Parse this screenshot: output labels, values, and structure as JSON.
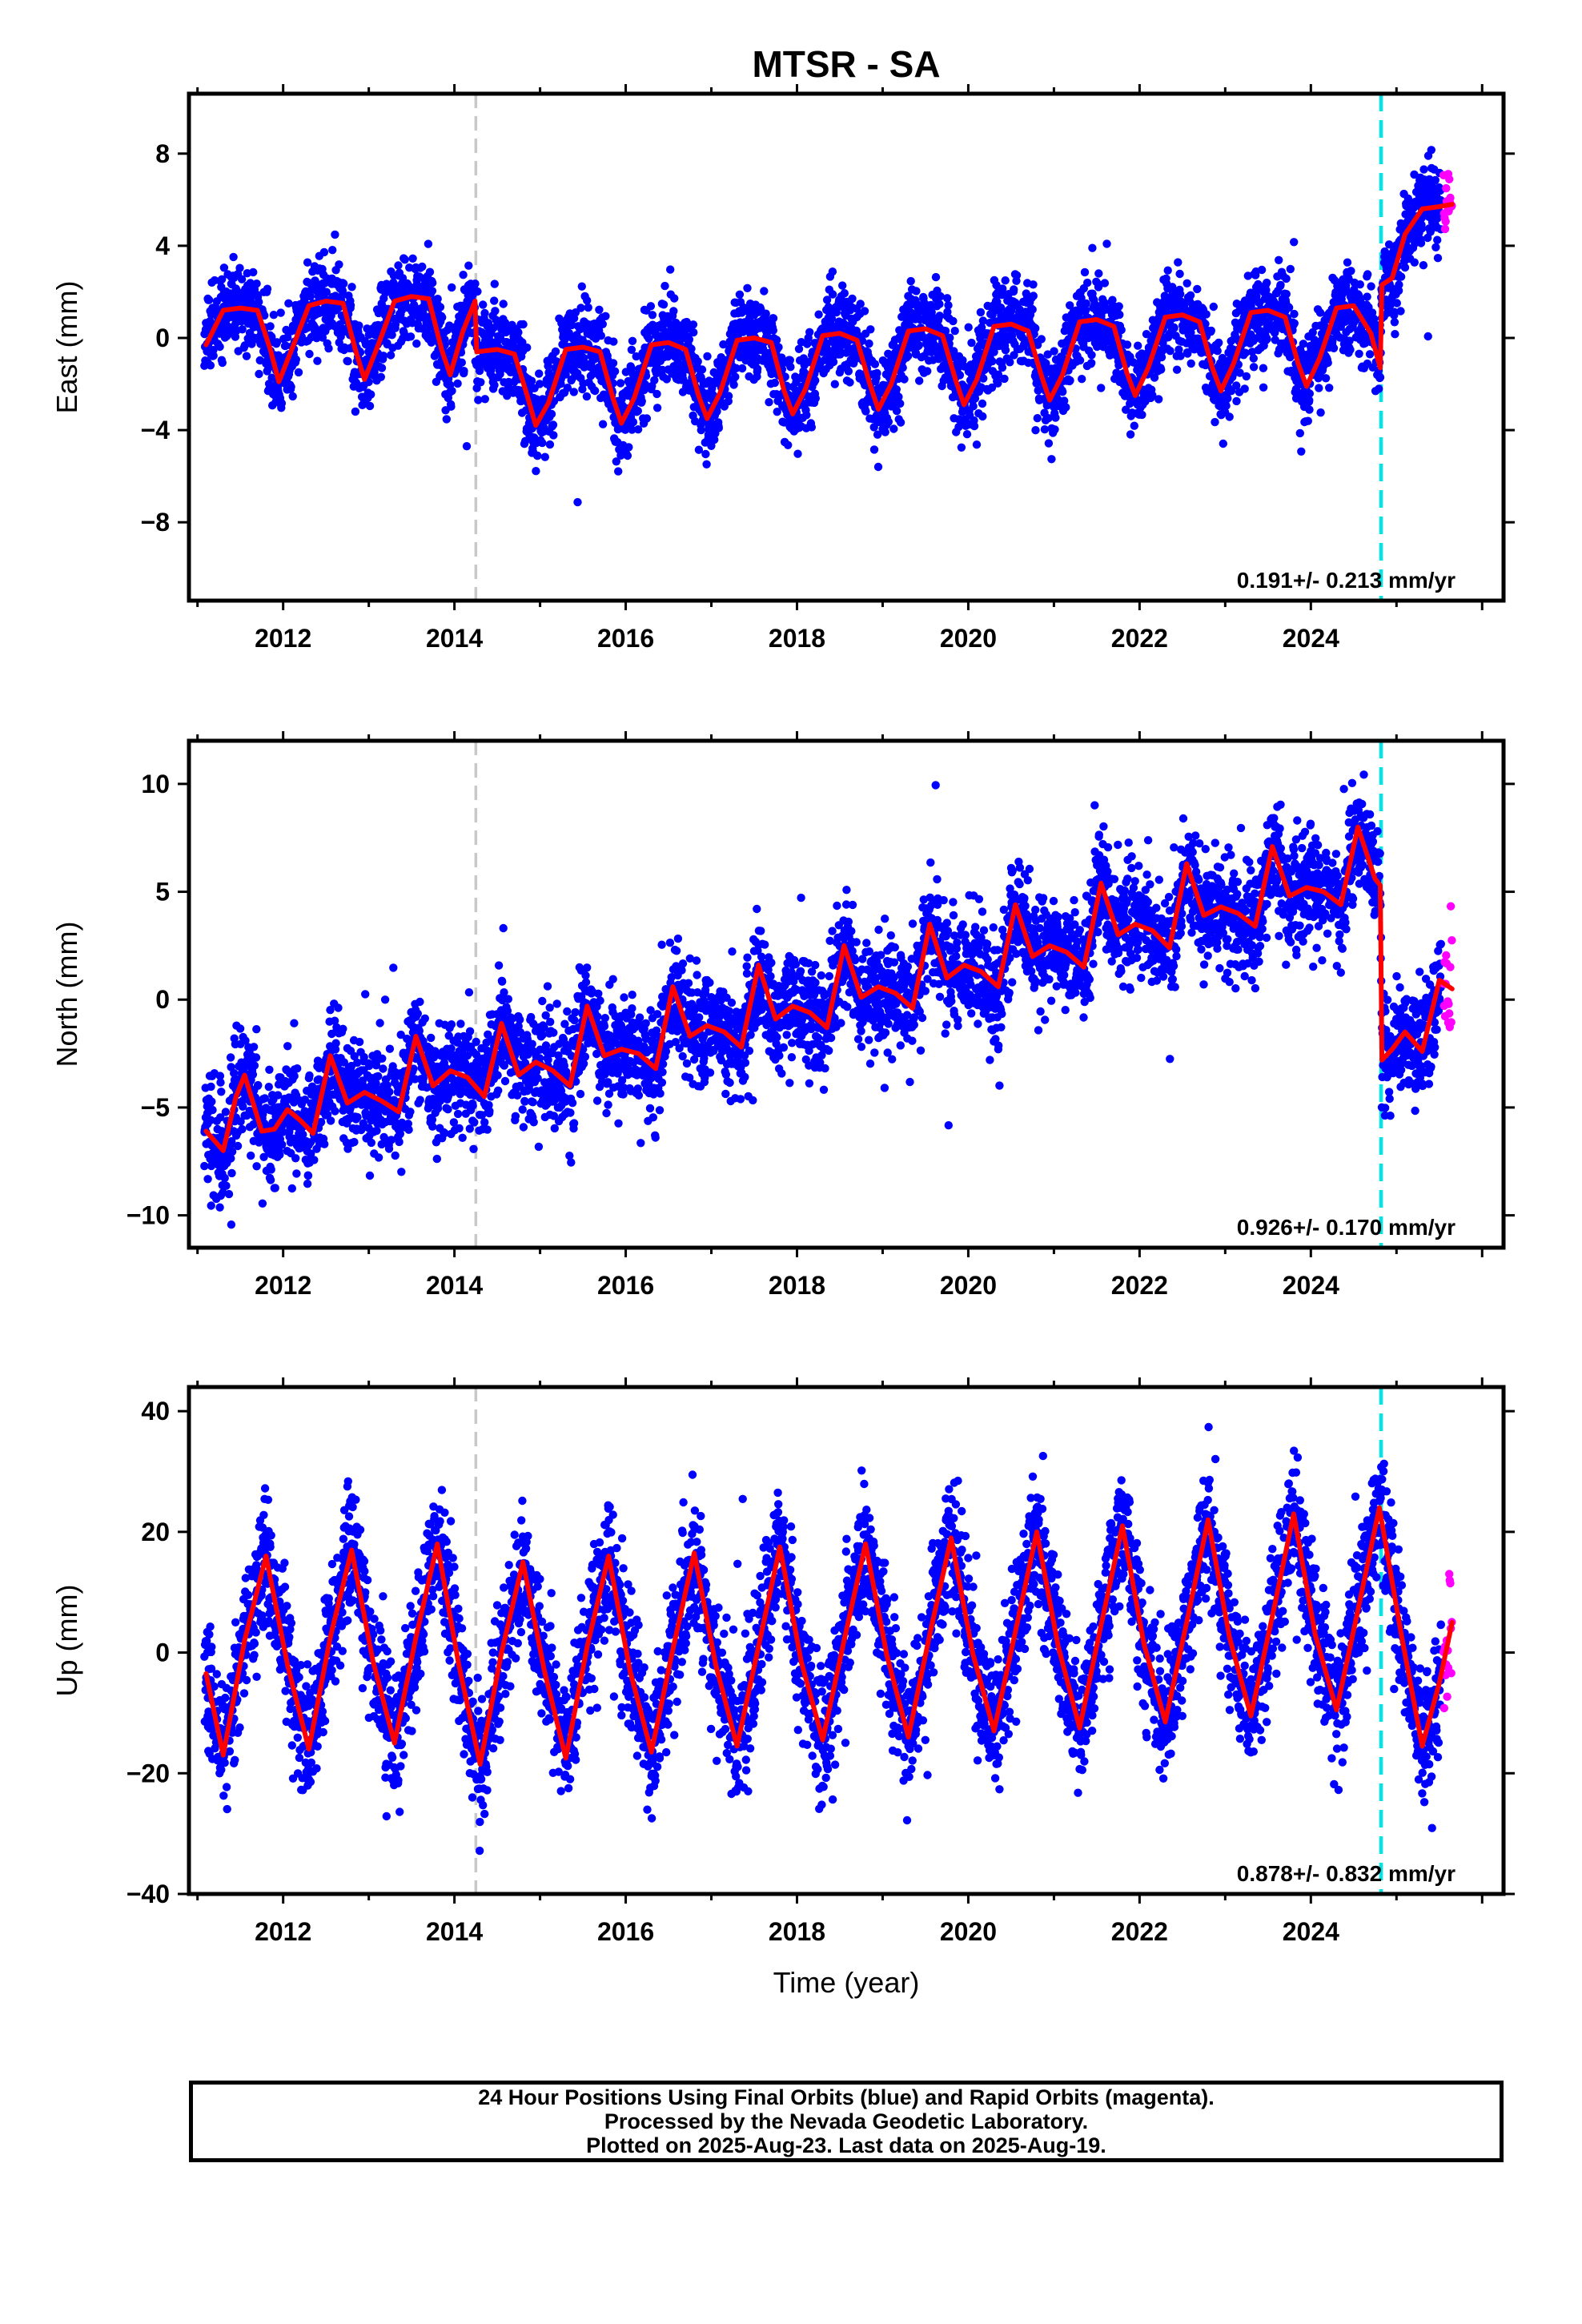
{
  "chart_data": {
    "title": "MTSR - SA",
    "type": "scatter",
    "xlabel": "Time (year)",
    "xlim": [
      2010.9,
      2026.25
    ],
    "xticks": [
      2012,
      2014,
      2016,
      2018,
      2020,
      2022,
      2024
    ],
    "series_legend": {
      "final_orbits_color": "#0000ff",
      "rapid_orbits_color": "#ff00ff",
      "model_color": "#ff0000"
    },
    "reference_lines": [
      {
        "x": 2014.25,
        "style": "dashed",
        "color": "#c8c8c8"
      },
      {
        "x": 2024.82,
        "style": "dashed",
        "color": "#00e5e5"
      }
    ],
    "panels": [
      {
        "ylabel": "East (mm)",
        "ylim": [
          -11.4,
          10.6
        ],
        "yticks": [
          -8,
          -4,
          0,
          4,
          8
        ],
        "rate_text": "0.191+/- 0.213 mm/yr",
        "model_curve": [
          [
            2011.1,
            -0.3
          ],
          [
            2011.3,
            1.2
          ],
          [
            2011.5,
            1.3
          ],
          [
            2011.7,
            1.2
          ],
          [
            2011.85,
            -0.5
          ],
          [
            2011.95,
            -1.9
          ],
          [
            2012.1,
            -0.5
          ],
          [
            2012.3,
            1.4
          ],
          [
            2012.5,
            1.6
          ],
          [
            2012.7,
            1.5
          ],
          [
            2012.85,
            -0.6
          ],
          [
            2012.95,
            -1.8
          ],
          [
            2013.1,
            -0.4
          ],
          [
            2013.3,
            1.6
          ],
          [
            2013.5,
            1.8
          ],
          [
            2013.7,
            1.7
          ],
          [
            2013.85,
            -0.5
          ],
          [
            2013.95,
            -1.6
          ],
          [
            2014.1,
            0.3
          ],
          [
            2014.24,
            1.6
          ],
          [
            2014.26,
            -0.6
          ],
          [
            2014.5,
            -0.5
          ],
          [
            2014.7,
            -0.7
          ],
          [
            2014.85,
            -2.5
          ],
          [
            2014.95,
            -3.8
          ],
          [
            2015.1,
            -2.8
          ],
          [
            2015.3,
            -0.5
          ],
          [
            2015.5,
            -0.4
          ],
          [
            2015.7,
            -0.6
          ],
          [
            2015.85,
            -2.6
          ],
          [
            2015.95,
            -3.7
          ],
          [
            2016.1,
            -2.6
          ],
          [
            2016.3,
            -0.3
          ],
          [
            2016.5,
            -0.2
          ],
          [
            2016.7,
            -0.5
          ],
          [
            2016.85,
            -2.5
          ],
          [
            2016.95,
            -3.5
          ],
          [
            2017.1,
            -2.4
          ],
          [
            2017.3,
            -0.1
          ],
          [
            2017.5,
            0.0
          ],
          [
            2017.7,
            -0.2
          ],
          [
            2017.85,
            -2.3
          ],
          [
            2017.95,
            -3.3
          ],
          [
            2018.1,
            -2.2
          ],
          [
            2018.3,
            0.1
          ],
          [
            2018.5,
            0.2
          ],
          [
            2018.7,
            -0.1
          ],
          [
            2018.85,
            -2.0
          ],
          [
            2018.95,
            -3.1
          ],
          [
            2019.1,
            -2.0
          ],
          [
            2019.3,
            0.3
          ],
          [
            2019.5,
            0.4
          ],
          [
            2019.7,
            0.1
          ],
          [
            2019.85,
            -1.8
          ],
          [
            2019.95,
            -2.9
          ],
          [
            2020.1,
            -1.8
          ],
          [
            2020.3,
            0.5
          ],
          [
            2020.5,
            0.6
          ],
          [
            2020.7,
            0.3
          ],
          [
            2020.85,
            -1.6
          ],
          [
            2020.95,
            -2.7
          ],
          [
            2021.1,
            -1.6
          ],
          [
            2021.3,
            0.7
          ],
          [
            2021.5,
            0.8
          ],
          [
            2021.7,
            0.5
          ],
          [
            2021.85,
            -1.5
          ],
          [
            2021.95,
            -2.5
          ],
          [
            2022.1,
            -1.3
          ],
          [
            2022.3,
            0.9
          ],
          [
            2022.5,
            1.0
          ],
          [
            2022.7,
            0.7
          ],
          [
            2022.85,
            -1.3
          ],
          [
            2022.95,
            -2.3
          ],
          [
            2023.1,
            -1.1
          ],
          [
            2023.3,
            1.1
          ],
          [
            2023.5,
            1.2
          ],
          [
            2023.7,
            0.9
          ],
          [
            2023.85,
            -1.1
          ],
          [
            2023.95,
            -2.1
          ],
          [
            2024.1,
            -0.9
          ],
          [
            2024.3,
            1.3
          ],
          [
            2024.5,
            1.4
          ],
          [
            2024.7,
            0.2
          ],
          [
            2024.81,
            -1.3
          ],
          [
            2024.83,
            2.3
          ],
          [
            2024.95,
            2.6
          ],
          [
            2025.1,
            4.5
          ],
          [
            2025.3,
            5.6
          ],
          [
            2025.5,
            5.7
          ],
          [
            2025.65,
            5.8
          ]
        ]
      },
      {
        "ylabel": "North (mm)",
        "ylim": [
          -11.5,
          12.0
        ],
        "yticks": [
          -10,
          -5,
          0,
          5,
          10
        ],
        "rate_text": "0.926+/- 0.170 mm/yr",
        "model_curve": [
          [
            2011.1,
            -6.1
          ],
          [
            2011.3,
            -7.0
          ],
          [
            2011.45,
            -4.5
          ],
          [
            2011.55,
            -3.5
          ],
          [
            2011.75,
            -6.1
          ],
          [
            2011.9,
            -6.0
          ],
          [
            2012.05,
            -5.1
          ],
          [
            2012.2,
            -5.6
          ],
          [
            2012.35,
            -6.2
          ],
          [
            2012.55,
            -2.6
          ],
          [
            2012.75,
            -4.8
          ],
          [
            2012.95,
            -4.3
          ],
          [
            2013.15,
            -4.7
          ],
          [
            2013.35,
            -5.2
          ],
          [
            2013.55,
            -1.7
          ],
          [
            2013.75,
            -4.0
          ],
          [
            2013.95,
            -3.3
          ],
          [
            2014.15,
            -3.6
          ],
          [
            2014.35,
            -4.5
          ],
          [
            2014.55,
            -1.1
          ],
          [
            2014.75,
            -3.5
          ],
          [
            2014.95,
            -2.9
          ],
          [
            2015.15,
            -3.3
          ],
          [
            2015.35,
            -4.0
          ],
          [
            2015.55,
            -0.3
          ],
          [
            2015.75,
            -2.6
          ],
          [
            2015.95,
            -2.3
          ],
          [
            2016.15,
            -2.5
          ],
          [
            2016.35,
            -3.2
          ],
          [
            2016.55,
            0.6
          ],
          [
            2016.75,
            -1.7
          ],
          [
            2016.95,
            -1.2
          ],
          [
            2017.15,
            -1.5
          ],
          [
            2017.35,
            -2.2
          ],
          [
            2017.55,
            1.6
          ],
          [
            2017.75,
            -0.9
          ],
          [
            2017.95,
            -0.3
          ],
          [
            2018.15,
            -0.6
          ],
          [
            2018.35,
            -1.3
          ],
          [
            2018.55,
            2.5
          ],
          [
            2018.75,
            0.1
          ],
          [
            2018.95,
            0.6
          ],
          [
            2019.15,
            0.3
          ],
          [
            2019.35,
            -0.4
          ],
          [
            2019.55,
            3.5
          ],
          [
            2019.75,
            1.0
          ],
          [
            2019.95,
            1.6
          ],
          [
            2020.15,
            1.3
          ],
          [
            2020.35,
            0.6
          ],
          [
            2020.55,
            4.4
          ],
          [
            2020.75,
            2.0
          ],
          [
            2020.95,
            2.5
          ],
          [
            2021.15,
            2.2
          ],
          [
            2021.35,
            1.5
          ],
          [
            2021.55,
            5.4
          ],
          [
            2021.75,
            3.0
          ],
          [
            2021.95,
            3.5
          ],
          [
            2022.15,
            3.2
          ],
          [
            2022.35,
            2.4
          ],
          [
            2022.55,
            6.3
          ],
          [
            2022.75,
            3.9
          ],
          [
            2022.95,
            4.3
          ],
          [
            2023.15,
            4.0
          ],
          [
            2023.35,
            3.4
          ],
          [
            2023.55,
            7.1
          ],
          [
            2023.75,
            4.8
          ],
          [
            2023.95,
            5.2
          ],
          [
            2024.15,
            5.0
          ],
          [
            2024.35,
            4.4
          ],
          [
            2024.55,
            8.0
          ],
          [
            2024.75,
            5.6
          ],
          [
            2024.81,
            5.3
          ],
          [
            2024.83,
            -2.8
          ],
          [
            2024.95,
            -2.3
          ],
          [
            2025.1,
            -1.5
          ],
          [
            2025.3,
            -2.4
          ],
          [
            2025.5,
            0.9
          ],
          [
            2025.65,
            0.5
          ]
        ]
      },
      {
        "ylabel": "Up (mm)",
        "ylim": [
          -40,
          44
        ],
        "yticks": [
          -40,
          -20,
          0,
          20,
          40
        ],
        "rate_text": "0.878+/- 0.832 mm/yr",
        "model_curve": [
          [
            2011.1,
            -3.5
          ],
          [
            2011.3,
            -17.0
          ],
          [
            2011.55,
            2.0
          ],
          [
            2011.8,
            16.0
          ],
          [
            2012.05,
            -2.0
          ],
          [
            2012.3,
            -16.0
          ],
          [
            2012.55,
            2.5
          ],
          [
            2012.8,
            17.0
          ],
          [
            2013.05,
            -1.5
          ],
          [
            2013.3,
            -15.0
          ],
          [
            2013.55,
            2.5
          ],
          [
            2013.8,
            18.0
          ],
          [
            2014.05,
            -2.0
          ],
          [
            2014.3,
            -18.5
          ],
          [
            2014.55,
            0.0
          ],
          [
            2014.8,
            15.0
          ],
          [
            2015.05,
            -3.0
          ],
          [
            2015.3,
            -17.5
          ],
          [
            2015.55,
            1.0
          ],
          [
            2015.8,
            16.0
          ],
          [
            2016.05,
            -3.0
          ],
          [
            2016.3,
            -16.5
          ],
          [
            2016.55,
            0.5
          ],
          [
            2016.8,
            16.5
          ],
          [
            2017.05,
            -2.0
          ],
          [
            2017.3,
            -15.5
          ],
          [
            2017.55,
            1.0
          ],
          [
            2017.8,
            17.5
          ],
          [
            2018.05,
            -1.5
          ],
          [
            2018.3,
            -14.5
          ],
          [
            2018.55,
            2.0
          ],
          [
            2018.8,
            18.0
          ],
          [
            2019.05,
            -0.5
          ],
          [
            2019.3,
            -14.0
          ],
          [
            2019.55,
            3.0
          ],
          [
            2019.8,
            19.0
          ],
          [
            2020.05,
            0.0
          ],
          [
            2020.3,
            -13.0
          ],
          [
            2020.55,
            3.5
          ],
          [
            2020.8,
            20.0
          ],
          [
            2021.05,
            1.0
          ],
          [
            2021.3,
            -12.5
          ],
          [
            2021.55,
            4.5
          ],
          [
            2021.8,
            21.0
          ],
          [
            2022.05,
            1.5
          ],
          [
            2022.3,
            -11.5
          ],
          [
            2022.55,
            5.0
          ],
          [
            2022.8,
            22.0
          ],
          [
            2023.05,
            2.5
          ],
          [
            2023.3,
            -10.5
          ],
          [
            2023.55,
            6.0
          ],
          [
            2023.8,
            23.0
          ],
          [
            2024.05,
            3.0
          ],
          [
            2024.3,
            -9.5
          ],
          [
            2024.55,
            7.0
          ],
          [
            2024.8,
            24.0
          ],
          [
            2025.05,
            3.5
          ],
          [
            2025.3,
            -15.5
          ],
          [
            2025.5,
            -5.0
          ],
          [
            2025.65,
            5.0
          ]
        ]
      }
    ]
  },
  "footer": {
    "line1": "24 Hour Positions Using Final Orbits (blue) and Rapid Orbits (magenta).",
    "line2": "Processed by the Nevada Geodetic Laboratory.",
    "line3": "Plotted on 2025-Aug-23. Last data on 2025-Aug-19."
  }
}
